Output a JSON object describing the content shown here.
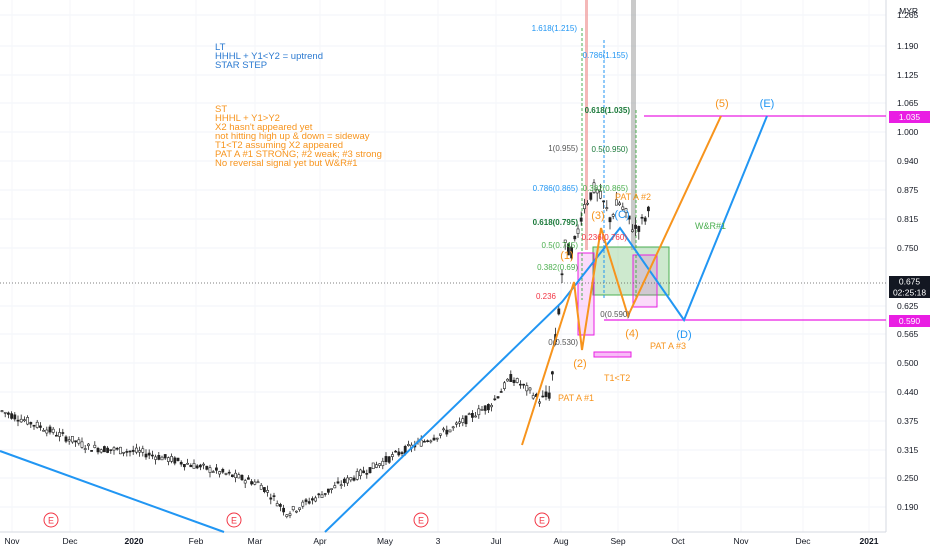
{
  "header": {
    "currency": "MYR"
  },
  "notes": {
    "lt": [
      "LT",
      "HHHL + Y1<Y2 = uptrend",
      "STAR STEP"
    ],
    "st": [
      "ST",
      "HHHL + Y1>Y2",
      "X2 hasn't appeared yet",
      "not hitting high up & down = sideway",
      "T1<T2 assuming X2 appeared",
      "PAT A #1 STRONG; #2 weak; #3 strong",
      "No reversal signal yet but W&R#1"
    ]
  },
  "colors": {
    "blue": "#2196f3",
    "orange": "#f7941d",
    "magenta": "#e91ee3",
    "green": "#4caf50",
    "red": "#f23645",
    "text_blue": "#2a79d0"
  },
  "chart_data": {
    "type": "line",
    "title": "",
    "xlabel": "",
    "ylabel": "",
    "currency": "MYR",
    "y_axis_ticks": [
      "1.265",
      "1.190",
      "1.125",
      "1.065",
      "1.000",
      "0.940",
      "0.875",
      "0.815",
      "0.750",
      "0.625",
      "0.565",
      "0.500",
      "0.440",
      "0.375",
      "0.315",
      "0.250",
      "0.190"
    ],
    "x_axis_ticks": [
      "Nov",
      "Dec",
      "2020",
      "Feb",
      "Mar",
      "Apr",
      "May",
      "3",
      "Jul",
      "Aug",
      "Sep",
      "Oct",
      "Nov",
      "Dec",
      "2021"
    ],
    "last_price": "0.675",
    "countdown": "02:25:18",
    "price_labels": [
      "1.035",
      "0.590"
    ],
    "price_series_approx": {
      "x": [
        "2019-10-26",
        "2019-11-15",
        "2019-12-10",
        "2020-01-05",
        "2020-02-05",
        "2020-03-05",
        "2020-03-19",
        "2020-04-05",
        "2020-05-01",
        "2020-05-20",
        "2020-06-10",
        "2020-06-30",
        "2020-07-10",
        "2020-07-20",
        "2020-07-25",
        "2020-07-30",
        "2020-08-03",
        "2020-08-06",
        "2020-08-09",
        "2020-08-12",
        "2020-08-15",
        "2020-08-18",
        "2020-08-21",
        "2020-08-25",
        "2020-08-29",
        "2020-09-02",
        "2020-09-06",
        "2020-09-10",
        "2020-09-14",
        "2020-09-18"
      ],
      "y": [
        0.287,
        0.268,
        0.245,
        0.24,
        0.225,
        0.21,
        0.185,
        0.2,
        0.225,
        0.245,
        0.265,
        0.295,
        0.33,
        0.31,
        0.298,
        0.31,
        0.44,
        0.58,
        0.56,
        0.6,
        0.68,
        0.71,
        0.74,
        0.7,
        0.65,
        0.7,
        0.66,
        0.62,
        0.64,
        0.675
      ]
    },
    "fib_labels": [
      {
        "text": "1.618(1.215)",
        "group": "blue"
      },
      {
        "text": "0.786(1.155)",
        "group": "blue"
      },
      {
        "text": "0.618(1.035)",
        "group": "green"
      },
      {
        "text": "1(0.955)",
        "group": "gray"
      },
      {
        "text": "0.5(0.950)",
        "group": "green"
      },
      {
        "text": "0.786(0.865)",
        "group": "blue"
      },
      {
        "text": "0.382(0.865)",
        "group": "green"
      },
      {
        "text": "0.618(0.795)",
        "group": "green"
      },
      {
        "text": "0.5(0.745)",
        "group": "green"
      },
      {
        "text": "0.382(0.69)",
        "group": "green"
      },
      {
        "text": "0.236(0.760)",
        "group": "red"
      },
      {
        "text": "0.236",
        "group": "red"
      },
      {
        "text": "0(0.590)",
        "group": "gray"
      },
      {
        "text": "0(0.530)",
        "group": "gray"
      }
    ],
    "wave_labels": [
      {
        "text": "(1)",
        "series": "orange"
      },
      {
        "text": "(2)",
        "series": "orange"
      },
      {
        "text": "(3)",
        "series": "orange"
      },
      {
        "text": "(4)",
        "series": "orange"
      },
      {
        "text": "(5)",
        "series": "orange"
      },
      {
        "text": "(C)",
        "series": "blue"
      },
      {
        "text": "(D)",
        "series": "blue"
      },
      {
        "text": "(E)",
        "series": "blue"
      }
    ],
    "annotations": [
      "PAT A #1",
      "PAT A #2",
      "PAT A #3",
      "T1<T2",
      "W&R#1"
    ],
    "events": [
      "E",
      "E",
      "E",
      "E"
    ]
  }
}
